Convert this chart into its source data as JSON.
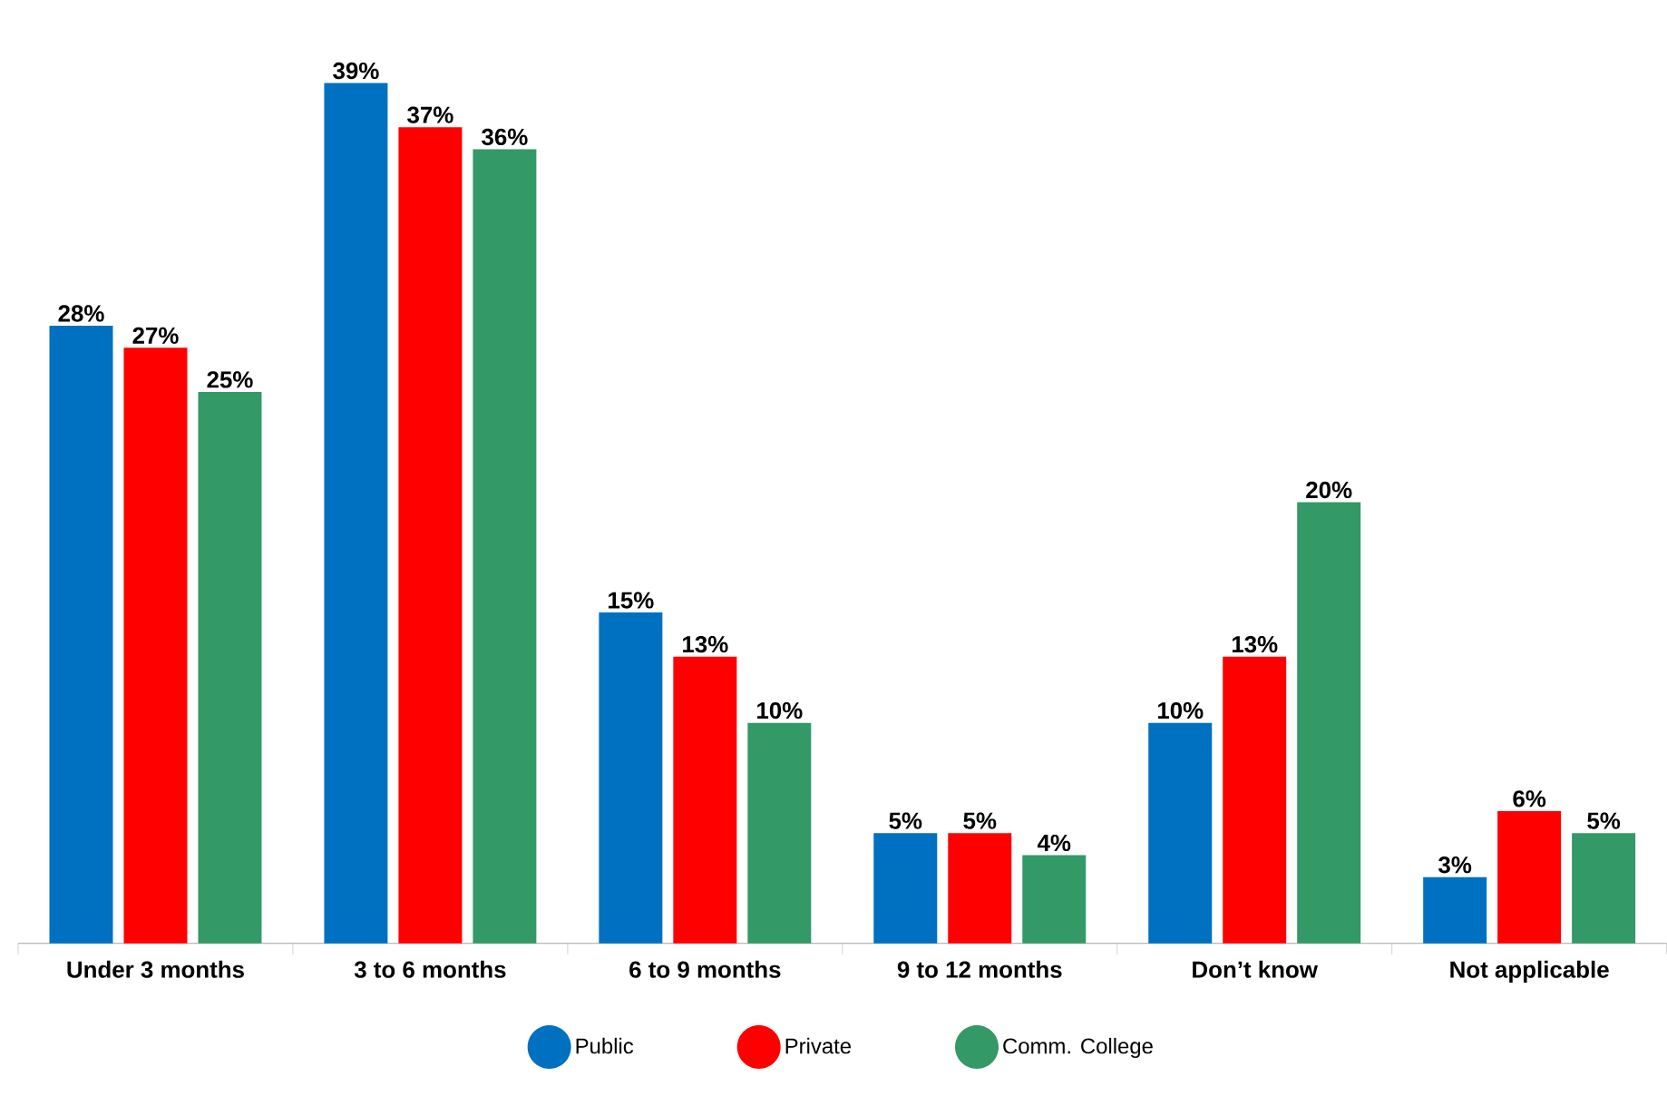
{
  "chart_data": {
    "type": "bar",
    "categories": [
      "Under 3 months",
      "3 to 6 months",
      "6 to 9 months",
      "9 to 12 months",
      "Don’t know",
      "Not applicable"
    ],
    "series": [
      {
        "name": "Public",
        "color": "#0070c0",
        "values": [
          28,
          39,
          15,
          5,
          10,
          3
        ],
        "value_labels": [
          "28%",
          "39%",
          "15%",
          "5%",
          "10%",
          "3%"
        ]
      },
      {
        "name": "Private",
        "color": "#ff0000",
        "values": [
          27,
          37,
          13,
          5,
          13,
          6
        ],
        "value_labels": [
          "27%",
          "37%",
          "13%",
          "5%",
          "13%",
          "6%"
        ]
      },
      {
        "name": "Comm. College",
        "color": "#339966",
        "values": [
          25,
          36,
          10,
          4,
          20,
          5
        ],
        "value_labels": [
          "25%",
          "36%",
          "10%",
          "4%",
          "20%",
          "5%"
        ]
      }
    ],
    "legend": "bottom",
    "marker": "circle"
  }
}
